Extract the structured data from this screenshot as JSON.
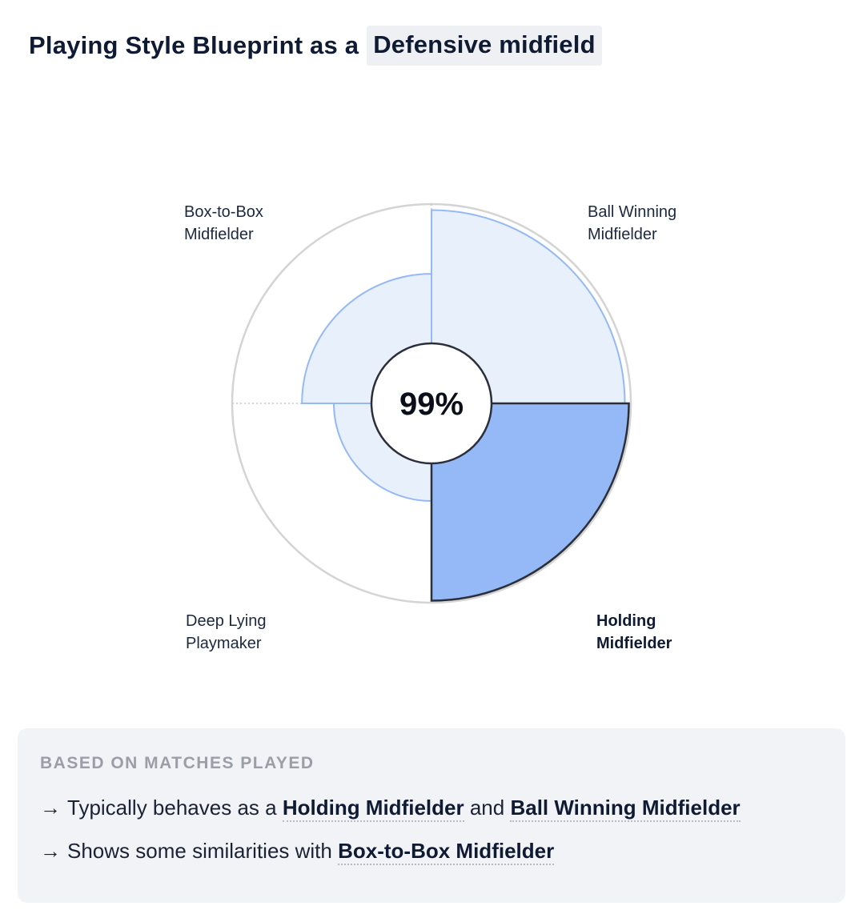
{
  "header": {
    "title_prefix": "Playing Style Blueprint as a",
    "position": "Defensive midfield"
  },
  "chart_data": {
    "type": "polar-area",
    "center_value": "99%",
    "segments": [
      {
        "name": "Ball Winning Midfielder",
        "label_lines": [
          "Ball Winning",
          "Midfielder"
        ],
        "value": 0.97,
        "highlighted": false
      },
      {
        "name": "Holding Midfielder",
        "label_lines": [
          "Holding",
          "Midfielder"
        ],
        "value": 0.99,
        "highlighted": true
      },
      {
        "name": "Deep Lying Playmaker",
        "label_lines": [
          "Deep Lying",
          "Playmaker"
        ],
        "value": 0.49,
        "highlighted": false
      },
      {
        "name": "Box-to-Box Midfielder",
        "label_lines": [
          "Box-to-Box",
          "Midfielder"
        ],
        "value": 0.65,
        "highlighted": false
      }
    ],
    "colors": {
      "fill_light": "#e8f0fc",
      "stroke_light": "#94b9f6",
      "fill_highlight": "#94b9f6",
      "stroke_highlight": "#2b2f3a",
      "outer_ring": "#d4d4d4"
    }
  },
  "summary": {
    "heading": "BASED ON MATCHES PLAYED",
    "arrow": "→",
    "line1_prefix": "Typically behaves as a",
    "line1_style1": "Holding Midfielder",
    "line1_and": "and",
    "line1_style2": "Ball Winning Midfielder",
    "line2_prefix": "Shows some similarities with",
    "line2_style": "Box-to-Box Midfielder"
  }
}
